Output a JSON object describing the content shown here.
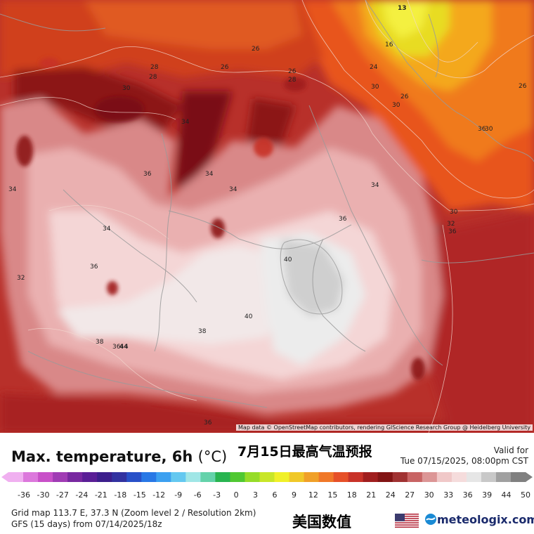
{
  "map": {
    "attribution": "Map data © OpenStreetMap contributors, rendering GIScience Research Group @ Heidelberg University",
    "contour_labels": [
      {
        "text": "13"
      },
      {
        "text": "16"
      },
      {
        "text": "24"
      },
      {
        "text": "26"
      },
      {
        "text": "26"
      },
      {
        "text": "26"
      },
      {
        "text": "26"
      },
      {
        "text": "26"
      },
      {
        "text": "28"
      },
      {
        "text": "28"
      },
      {
        "text": "28"
      },
      {
        "text": "30"
      },
      {
        "text": "30"
      },
      {
        "text": "30"
      },
      {
        "text": "30"
      },
      {
        "text": "30"
      },
      {
        "text": "32"
      },
      {
        "text": "32"
      },
      {
        "text": "34"
      },
      {
        "text": "34"
      },
      {
        "text": "34"
      },
      {
        "text": "34"
      },
      {
        "text": "34"
      },
      {
        "text": "34"
      },
      {
        "text": "36"
      },
      {
        "text": "36"
      },
      {
        "text": "36"
      },
      {
        "text": "36"
      },
      {
        "text": "36"
      },
      {
        "text": "36"
      },
      {
        "text": "36"
      },
      {
        "text": "38"
      },
      {
        "text": "38"
      },
      {
        "text": "40"
      },
      {
        "text": "40"
      },
      {
        "text": "44"
      }
    ]
  },
  "footer": {
    "title": "Max. temperature, 6h",
    "unit": "(°C)",
    "title_cn": "7月15日最高气温预报",
    "valid_label": "Valid for",
    "valid_time": "Tue 07/15/2025, 08:00pm CST",
    "grid_info": "Grid map 113.7 E, 37.3 N (Zoom level 2 / Resolution 2km)",
    "model_info": "GFS (15 days) from 07/14/2025/18z",
    "brand_cn": "美国数值",
    "brand_name": "meteologix.com",
    "flag_icon": "us-flag-icon",
    "logo_icon": "meteologix-logo-icon"
  },
  "colorbar": {
    "ticks": [
      "-36",
      "-30",
      "-27",
      "-24",
      "-21",
      "-18",
      "-15",
      "-12",
      "-9",
      "-6",
      "-3",
      "0",
      "3",
      "6",
      "9",
      "12",
      "15",
      "18",
      "21",
      "24",
      "27",
      "30",
      "33",
      "36",
      "39",
      "44",
      "50"
    ],
    "colors": [
      "#f0b0f0",
      "#dc78dc",
      "#c850c8",
      "#a03cb4",
      "#7828a0",
      "#5a1e96",
      "#3c1e8c",
      "#3232a0",
      "#2850c8",
      "#2878e6",
      "#3ca0f0",
      "#64c8f0",
      "#a0e6e6",
      "#64d2aa",
      "#28b450",
      "#50c832",
      "#96dc28",
      "#c8e628",
      "#f0f028",
      "#f0c828",
      "#f0a028",
      "#f07828",
      "#e65028",
      "#c83228",
      "#a01e1e",
      "#821414",
      "#a03232",
      "#c86464",
      "#dc9696",
      "#f0c8c8",
      "#f5dcdc",
      "#e6e6e6",
      "#c8c8c8",
      "#a0a0a0",
      "#808080"
    ]
  }
}
